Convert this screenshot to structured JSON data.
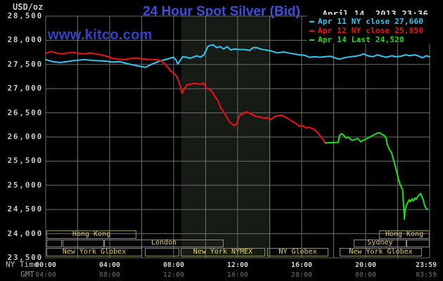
{
  "title": "24 Hour Spot Silver (Bid)",
  "unit_label": "USD/oz",
  "datetime": "April 14, 2013 23:36",
  "watermark": "www.kitco.com",
  "axis_labels": {
    "ny": "NY Time",
    "gmt": "GMT"
  },
  "colors": {
    "background": "#000000",
    "grid": "#6e6e6e",
    "band": "#161b16",
    "session_border": "#8e8e50",
    "session_text": "#e5d04f",
    "title_blue": "#3a50dc",
    "watermark_blue": "#3143cd",
    "cyan_line": "#2fc8f5",
    "red_line": "#f21010",
    "green_line": "#17e317"
  },
  "chart_data": {
    "type": "line",
    "title": "24 Hour Spot Silver (Bid)",
    "xlabel": "time (NY Time, hours 00:00-23:59)",
    "ylabel": "USD/oz",
    "xlim": [
      0,
      24
    ],
    "ylim": [
      23.5,
      28.5
    ],
    "grid": true,
    "x_grid_step_hours": 2,
    "y_tick_step": 0.5,
    "y_tick_labels": [
      "28,500",
      "28,000",
      "27,500",
      "27,000",
      "26,500",
      "26,000",
      "25,500",
      "25,000",
      "24,500",
      "24,000",
      "23,500"
    ],
    "x_ticks": [
      {
        "h": 0,
        "ny": "00:00",
        "gmt": "04:00"
      },
      {
        "h": 4,
        "ny": "04:00",
        "gmt": "08:00"
      },
      {
        "h": 8,
        "ny": "08:00",
        "gmt": "12:00"
      },
      {
        "h": 12,
        "ny": "12:00",
        "gmt": "16:00"
      },
      {
        "h": 16,
        "ny": "16:00",
        "gmt": "20:00"
      },
      {
        "h": 20,
        "ny": "20:00",
        "gmt": "00:00"
      },
      {
        "h": 24,
        "ny": "23:59",
        "gmt": "03:59"
      }
    ],
    "nymex_band_hours": [
      8.48,
      14.07
    ],
    "series": [
      {
        "id": "apr-11",
        "legend": "Apr 11 NY close 27,660",
        "close": 27.66,
        "color": "#2fc8f5",
        "points": [
          [
            0,
            27.6
          ],
          [
            0.44,
            27.56
          ],
          [
            0.88,
            27.54
          ],
          [
            1.32,
            27.56
          ],
          [
            1.76,
            27.58
          ],
          [
            2.42,
            27.6
          ],
          [
            3.08,
            27.58
          ],
          [
            3.74,
            27.57
          ],
          [
            4.18,
            27.55
          ],
          [
            4.62,
            27.56
          ],
          [
            5.05,
            27.52
          ],
          [
            5.49,
            27.49
          ],
          [
            5.93,
            27.46
          ],
          [
            6.24,
            27.44
          ],
          [
            6.59,
            27.5
          ],
          [
            7.03,
            27.56
          ],
          [
            7.47,
            27.6
          ],
          [
            8.0,
            27.65
          ],
          [
            8.13,
            27.6
          ],
          [
            8.26,
            27.51
          ],
          [
            8.44,
            27.6
          ],
          [
            8.57,
            27.66
          ],
          [
            8.79,
            27.65
          ],
          [
            9.01,
            27.63
          ],
          [
            9.45,
            27.68
          ],
          [
            9.67,
            27.65
          ],
          [
            9.89,
            27.7
          ],
          [
            10.15,
            27.88
          ],
          [
            10.46,
            27.91
          ],
          [
            10.68,
            27.85
          ],
          [
            10.9,
            27.87
          ],
          [
            11.12,
            27.82
          ],
          [
            11.34,
            27.87
          ],
          [
            11.56,
            27.8
          ],
          [
            11.78,
            27.82
          ],
          [
            12.09,
            27.81
          ],
          [
            12.44,
            27.81
          ],
          [
            12.75,
            27.79
          ],
          [
            12.97,
            27.85
          ],
          [
            13.19,
            27.85
          ],
          [
            13.41,
            27.82
          ],
          [
            13.76,
            27.8
          ],
          [
            14.07,
            27.78
          ],
          [
            14.51,
            27.74
          ],
          [
            14.86,
            27.76
          ],
          [
            15.16,
            27.74
          ],
          [
            15.52,
            27.72
          ],
          [
            15.82,
            27.7
          ],
          [
            16.18,
            27.69
          ],
          [
            16.48,
            27.65
          ],
          [
            16.84,
            27.66
          ],
          [
            17.14,
            27.65
          ],
          [
            17.45,
            27.66
          ],
          [
            17.8,
            27.67
          ],
          [
            18.15,
            27.63
          ],
          [
            18.37,
            27.61
          ],
          [
            18.68,
            27.64
          ],
          [
            19.03,
            27.66
          ],
          [
            19.34,
            27.67
          ],
          [
            19.65,
            27.69
          ],
          [
            19.87,
            27.72
          ],
          [
            20.13,
            27.68
          ],
          [
            20.44,
            27.66
          ],
          [
            20.75,
            27.7
          ],
          [
            21.01,
            27.67
          ],
          [
            21.32,
            27.65
          ],
          [
            21.63,
            27.68
          ],
          [
            21.89,
            27.66
          ],
          [
            22.2,
            27.67
          ],
          [
            22.51,
            27.7
          ],
          [
            22.77,
            27.68
          ],
          [
            23.08,
            27.7
          ],
          [
            23.34,
            27.67
          ],
          [
            23.56,
            27.64
          ],
          [
            23.78,
            27.68
          ],
          [
            24,
            27.66
          ]
        ]
      },
      {
        "id": "apr-12",
        "legend": "Apr 12 NY close 25,850",
        "close": 25.85,
        "color": "#f21010",
        "points": [
          [
            0,
            27.73
          ],
          [
            0.31,
            27.77
          ],
          [
            0.66,
            27.74
          ],
          [
            1.01,
            27.72
          ],
          [
            1.36,
            27.74
          ],
          [
            1.71,
            27.75
          ],
          [
            2.07,
            27.73
          ],
          [
            2.42,
            27.72
          ],
          [
            2.77,
            27.74
          ],
          [
            3.12,
            27.72
          ],
          [
            3.47,
            27.7
          ],
          [
            3.82,
            27.67
          ],
          [
            4.18,
            27.63
          ],
          [
            4.53,
            27.61
          ],
          [
            4.88,
            27.6
          ],
          [
            5.23,
            27.62
          ],
          [
            5.58,
            27.63
          ],
          [
            5.93,
            27.62
          ],
          [
            6.29,
            27.61
          ],
          [
            6.64,
            27.6
          ],
          [
            6.99,
            27.6
          ],
          [
            7.25,
            27.57
          ],
          [
            7.52,
            27.49
          ],
          [
            7.78,
            27.38
          ],
          [
            8.0,
            27.32
          ],
          [
            8.18,
            27.26
          ],
          [
            8.31,
            27.16
          ],
          [
            8.44,
            27.02
          ],
          [
            8.53,
            26.9
          ],
          [
            8.66,
            27.0
          ],
          [
            8.84,
            27.08
          ],
          [
            9.05,
            27.09
          ],
          [
            9.27,
            27.11
          ],
          [
            9.49,
            27.1
          ],
          [
            9.71,
            27.09
          ],
          [
            9.85,
            27.12
          ],
          [
            10.02,
            27.02
          ],
          [
            10.2,
            26.99
          ],
          [
            10.42,
            26.93
          ],
          [
            10.59,
            26.83
          ],
          [
            10.77,
            26.75
          ],
          [
            10.95,
            26.6
          ],
          [
            11.12,
            26.52
          ],
          [
            11.3,
            26.42
          ],
          [
            11.47,
            26.32
          ],
          [
            11.65,
            26.27
          ],
          [
            11.78,
            26.23
          ],
          [
            11.91,
            26.27
          ],
          [
            12.04,
            26.36
          ],
          [
            12.13,
            26.45
          ],
          [
            12.31,
            26.48
          ],
          [
            12.53,
            26.52
          ],
          [
            12.7,
            26.5
          ],
          [
            12.88,
            26.47
          ],
          [
            13.05,
            26.44
          ],
          [
            13.23,
            26.42
          ],
          [
            13.45,
            26.41
          ],
          [
            13.63,
            26.39
          ],
          [
            13.85,
            26.4
          ],
          [
            14.07,
            26.36
          ],
          [
            14.29,
            26.42
          ],
          [
            14.51,
            26.44
          ],
          [
            14.73,
            26.45
          ],
          [
            14.95,
            26.42
          ],
          [
            15.16,
            26.38
          ],
          [
            15.38,
            26.33
          ],
          [
            15.6,
            26.29
          ],
          [
            15.87,
            26.22
          ],
          [
            16.04,
            26.24
          ],
          [
            16.26,
            26.19
          ],
          [
            16.48,
            26.2
          ],
          [
            16.7,
            26.17
          ],
          [
            16.92,
            26.12
          ],
          [
            17.1,
            26.05
          ],
          [
            17.27,
            25.98
          ],
          [
            17.41,
            25.91
          ],
          [
            17.49,
            25.87
          ]
        ]
      },
      {
        "id": "apr-14",
        "legend": "Apr 14 Last 24,520",
        "close": 24.52,
        "color": "#17e317",
        "points": [
          [
            17.49,
            25.88
          ],
          [
            17.8,
            25.88
          ],
          [
            18.29,
            25.89
          ],
          [
            18.37,
            26.03
          ],
          [
            18.51,
            26.07
          ],
          [
            18.64,
            26.03
          ],
          [
            18.77,
            25.98
          ],
          [
            18.9,
            26.0
          ],
          [
            19.03,
            25.96
          ],
          [
            19.16,
            25.93
          ],
          [
            19.34,
            25.95
          ],
          [
            19.47,
            25.97
          ],
          [
            19.6,
            25.94
          ],
          [
            19.69,
            25.9
          ],
          [
            19.82,
            25.93
          ],
          [
            19.96,
            25.95
          ],
          [
            20.09,
            25.97
          ],
          [
            20.26,
            26.0
          ],
          [
            20.44,
            26.03
          ],
          [
            20.62,
            26.06
          ],
          [
            20.79,
            26.09
          ],
          [
            20.92,
            26.08
          ],
          [
            21.05,
            26.05
          ],
          [
            21.19,
            26.02
          ],
          [
            21.27,
            25.99
          ],
          [
            21.36,
            25.84
          ],
          [
            21.49,
            25.74
          ],
          [
            21.63,
            25.67
          ],
          [
            21.71,
            25.56
          ],
          [
            21.8,
            25.46
          ],
          [
            21.89,
            25.35
          ],
          [
            21.98,
            25.23
          ],
          [
            22.07,
            25.11
          ],
          [
            22.15,
            25.02
          ],
          [
            22.24,
            24.95
          ],
          [
            22.31,
            24.92
          ],
          [
            22.35,
            24.7
          ],
          [
            22.4,
            24.45
          ],
          [
            22.42,
            24.3
          ],
          [
            22.46,
            24.48
          ],
          [
            22.53,
            24.57
          ],
          [
            22.64,
            24.65
          ],
          [
            22.73,
            24.7
          ],
          [
            22.81,
            24.66
          ],
          [
            22.9,
            24.72
          ],
          [
            22.99,
            24.68
          ],
          [
            23.08,
            24.74
          ],
          [
            23.16,
            24.71
          ],
          [
            23.25,
            24.76
          ],
          [
            23.34,
            24.8
          ],
          [
            23.43,
            24.83
          ],
          [
            23.52,
            24.76
          ],
          [
            23.6,
            24.7
          ],
          [
            23.69,
            24.58
          ],
          [
            23.78,
            24.52
          ],
          [
            23.87,
            24.5
          ]
        ]
      }
    ],
    "sessions": [
      {
        "row": 0,
        "label": "Hong Kong",
        "from": 0.05,
        "to": 5.67
      },
      {
        "row": 0,
        "label": "Hong Kong",
        "from": 20.84,
        "to": 24
      },
      {
        "row": 1,
        "label": "",
        "from": 0.05,
        "to": 1.01
      },
      {
        "row": 1,
        "label": "",
        "from": 1.05,
        "to": 3.65
      },
      {
        "row": 1,
        "label": "London",
        "from": 3.65,
        "to": 11.12
      },
      {
        "row": 1,
        "label": "Sydney",
        "from": 19.25,
        "to": 22.55
      },
      {
        "row": 1,
        "label": "",
        "from": 22.55,
        "to": 24
      },
      {
        "row": 2,
        "label": "New York Globex",
        "from": 0.05,
        "to": 6.02
      },
      {
        "row": 2,
        "label": "",
        "from": 6.2,
        "to": 8.35
      },
      {
        "row": 2,
        "label": "New York NYMEX",
        "from": 8.44,
        "to": 13.71
      },
      {
        "row": 2,
        "label": "NY Globex",
        "from": 13.85,
        "to": 17.67
      },
      {
        "row": 2,
        "label": "New York Globex",
        "from": 18.37,
        "to": 23.52
      }
    ]
  }
}
